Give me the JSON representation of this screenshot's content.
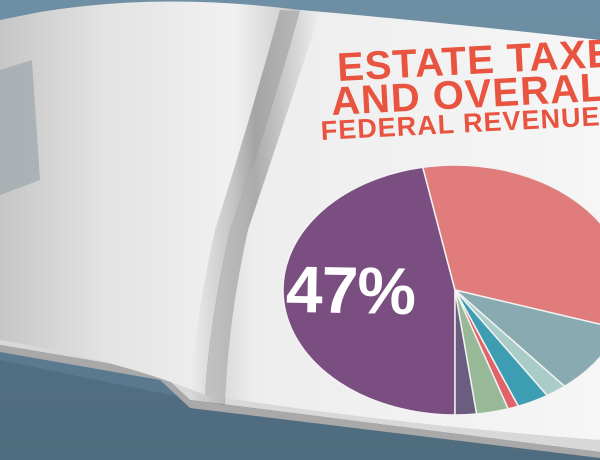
{
  "headline": {
    "line1": "ESTATE TAXES",
    "line2": "AND OVERALL",
    "line3": "FEDERAL REVENUE"
  },
  "pie": {
    "highlight_label": "47%",
    "slices": [
      {
        "value": 47,
        "color": "#7a4e80"
      },
      {
        "value": 33,
        "color": "#e07c7c"
      },
      {
        "value": 9,
        "color": "#89aab1"
      },
      {
        "value": 2,
        "color": "#a9ccc8"
      },
      {
        "value": 3,
        "color": "#3d9db2"
      },
      {
        "value": 1,
        "color": "#e3626a"
      },
      {
        "value": 3,
        "color": "#97b998"
      },
      {
        "value": 2,
        "color": "#6b5d7f"
      }
    ]
  },
  "colors": {
    "background": "#62839a",
    "page": "#f2f2f2",
    "title": "#e8543f"
  }
}
